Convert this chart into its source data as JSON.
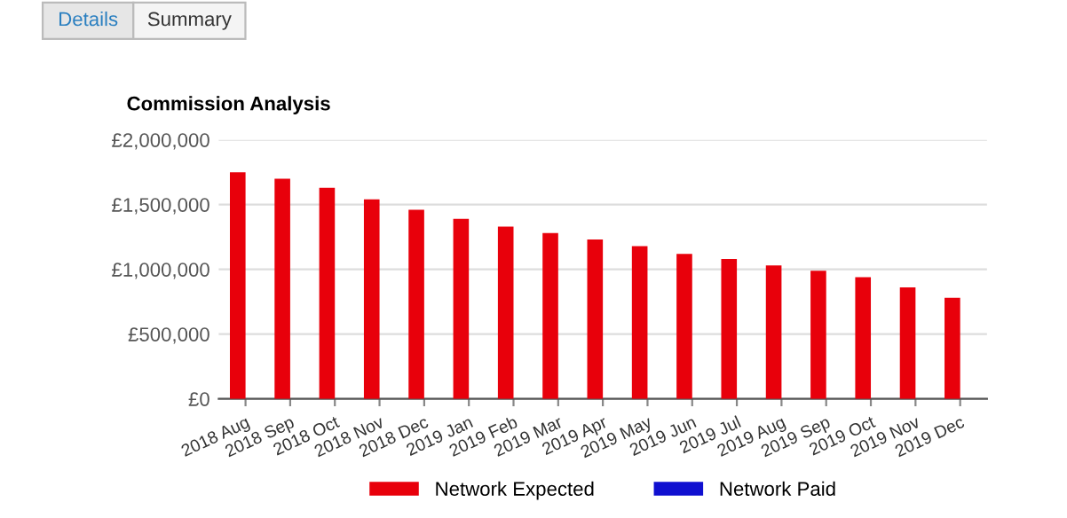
{
  "chart_data": {
    "type": "bar",
    "title": "Commission Analysis",
    "categories": [
      "2018 Aug",
      "2018 Sep",
      "2018 Oct",
      "2018 Nov",
      "2018 Dec",
      "2019 Jan",
      "2019 Feb",
      "2019 Mar",
      "2019 Apr",
      "2019 May",
      "2019 Jun",
      "2019 Jul",
      "2019 Aug",
      "2019 Sep",
      "2019 Oct",
      "2019 Nov",
      "2019 Dec"
    ],
    "series": [
      {
        "name": "Network Expected",
        "color": "#e8000b",
        "values": [
          1750000,
          1700000,
          1630000,
          1540000,
          1460000,
          1390000,
          1330000,
          1280000,
          1230000,
          1180000,
          1120000,
          1080000,
          1030000,
          990000,
          940000,
          860000,
          780000
        ]
      },
      {
        "name": "Network Paid",
        "color": "#1010d0",
        "values": [
          0,
          0,
          0,
          0,
          0,
          0,
          0,
          0,
          0,
          0,
          0,
          0,
          0,
          0,
          0,
          0,
          0
        ]
      }
    ],
    "ylim": [
      0,
      2000000
    ],
    "yticks": [
      {
        "value": 0,
        "label": "£0"
      },
      {
        "value": 500000,
        "label": "£500,000"
      },
      {
        "value": 1000000,
        "label": "£1,000,000"
      },
      {
        "value": 1500000,
        "label": "£1,500,000"
      },
      {
        "value": 2000000,
        "label": "£2,000,000"
      }
    ],
    "grid": "y",
    "legend": "bottom",
    "annotations": [
      "Details",
      "Summary"
    ]
  }
}
